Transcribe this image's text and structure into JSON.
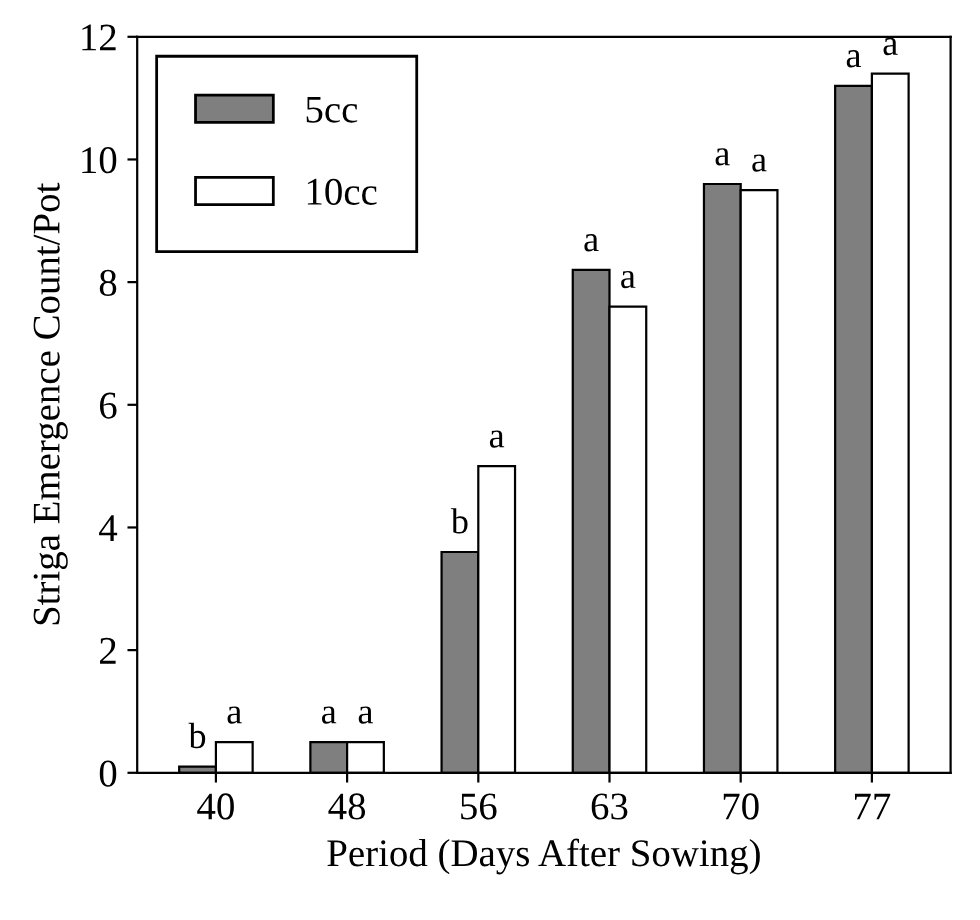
{
  "chart_data": {
    "type": "bar",
    "xlabel": "Period (Days After Sowing)",
    "ylabel": "Striga Emergence Count/Pot",
    "categories": [
      "40",
      "48",
      "56",
      "63",
      "70",
      "77"
    ],
    "series": [
      {
        "name": "5cc",
        "color": "#7f7f7f",
        "values": [
          0.1,
          0.5,
          3.6,
          8.2,
          9.6,
          11.2
        ],
        "value_labels": [
          "b",
          "a",
          "b",
          "a",
          "a",
          "a"
        ]
      },
      {
        "name": "10cc",
        "color": "#ffffff",
        "values": [
          0.5,
          0.5,
          5.0,
          7.6,
          9.5,
          11.4
        ],
        "value_labels": [
          "a",
          "a",
          "a",
          "a",
          "a",
          "a"
        ]
      }
    ],
    "ylim": [
      0,
      12
    ],
    "yticks": [
      0,
      2,
      4,
      6,
      8,
      10,
      12
    ],
    "legend": "top left",
    "grid": false
  }
}
